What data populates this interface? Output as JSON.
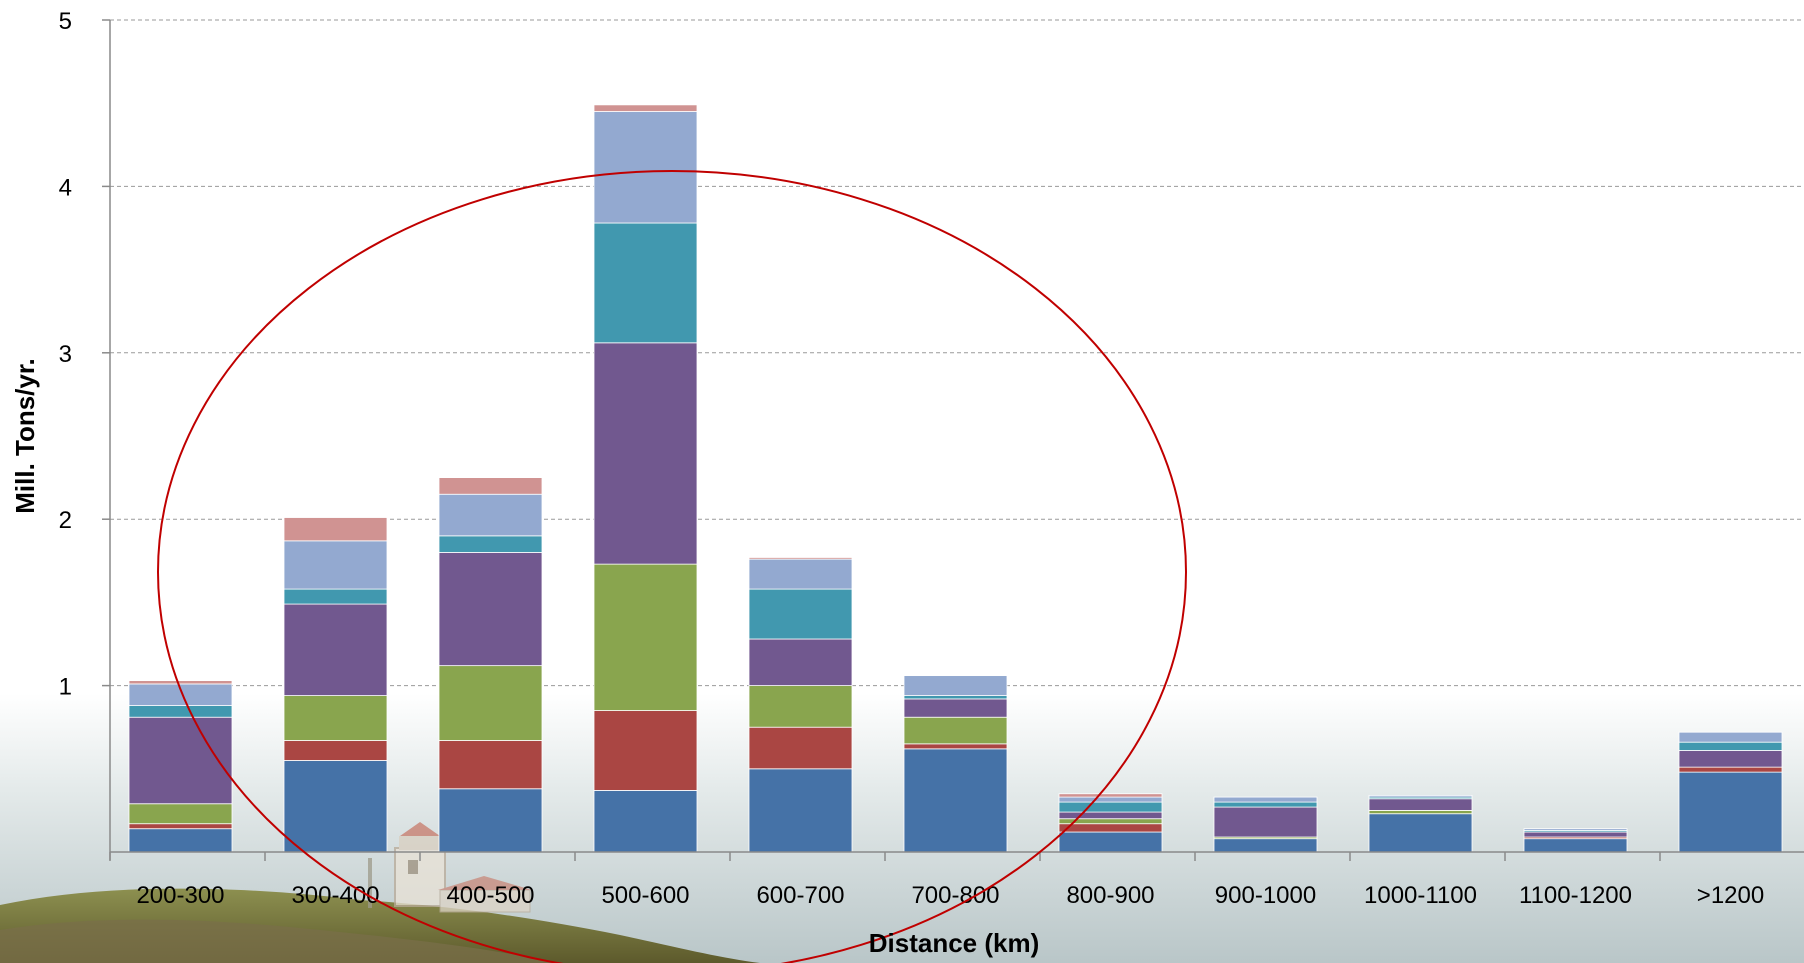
{
  "chart_data": {
    "type": "bar",
    "stacked": true,
    "title": "",
    "xlabel": "Distance (km)",
    "ylabel": "Mill. Tons/yr.",
    "ylim": [
      0,
      5
    ],
    "yticks": [
      "1",
      "2",
      "3",
      "4",
      "5"
    ],
    "grid": true,
    "legend": "none",
    "categories": [
      "200-300",
      "300-400",
      "400-500",
      "500-600",
      "600-700",
      "700-800",
      "800-900",
      "900-1000",
      "1000-1100",
      "1100-1200",
      ">1200"
    ],
    "series": [
      {
        "color": "#4572a7",
        "values": [
          0.14,
          0.55,
          0.38,
          0.37,
          0.5,
          0.62,
          0.12,
          0.08,
          0.23,
          0.08,
          0.48
        ]
      },
      {
        "color": "#aa4643",
        "values": [
          0.03,
          0.12,
          0.29,
          0.48,
          0.25,
          0.03,
          0.05,
          0.0,
          0.0,
          0.01,
          0.03
        ]
      },
      {
        "color": "#89a54e",
        "values": [
          0.12,
          0.27,
          0.45,
          0.88,
          0.25,
          0.16,
          0.03,
          0.01,
          0.02,
          0.0,
          0.0
        ]
      },
      {
        "color": "#71588f",
        "values": [
          0.52,
          0.55,
          0.68,
          1.33,
          0.28,
          0.11,
          0.04,
          0.18,
          0.07,
          0.03,
          0.1
        ]
      },
      {
        "color": "#4198af",
        "values": [
          0.07,
          0.09,
          0.1,
          0.72,
          0.3,
          0.02,
          0.06,
          0.03,
          0.01,
          0.01,
          0.05
        ]
      },
      {
        "color": "#93a9d0",
        "values": [
          0.13,
          0.29,
          0.25,
          0.67,
          0.18,
          0.12,
          0.03,
          0.03,
          0.01,
          0.01,
          0.06
        ]
      },
      {
        "color": "#d09392",
        "values": [
          0.02,
          0.14,
          0.1,
          0.04,
          0.01,
          0.0,
          0.02,
          0.0,
          0.0,
          0.0,
          0.0
        ]
      }
    ],
    "highlight": {
      "shape": "ellipse",
      "color": "#c00000"
    }
  },
  "background": {
    "description_icon": "lighthouse-coast-photo",
    "sea_color": "#bcc9cb",
    "land_color": "#6e7a3a"
  }
}
